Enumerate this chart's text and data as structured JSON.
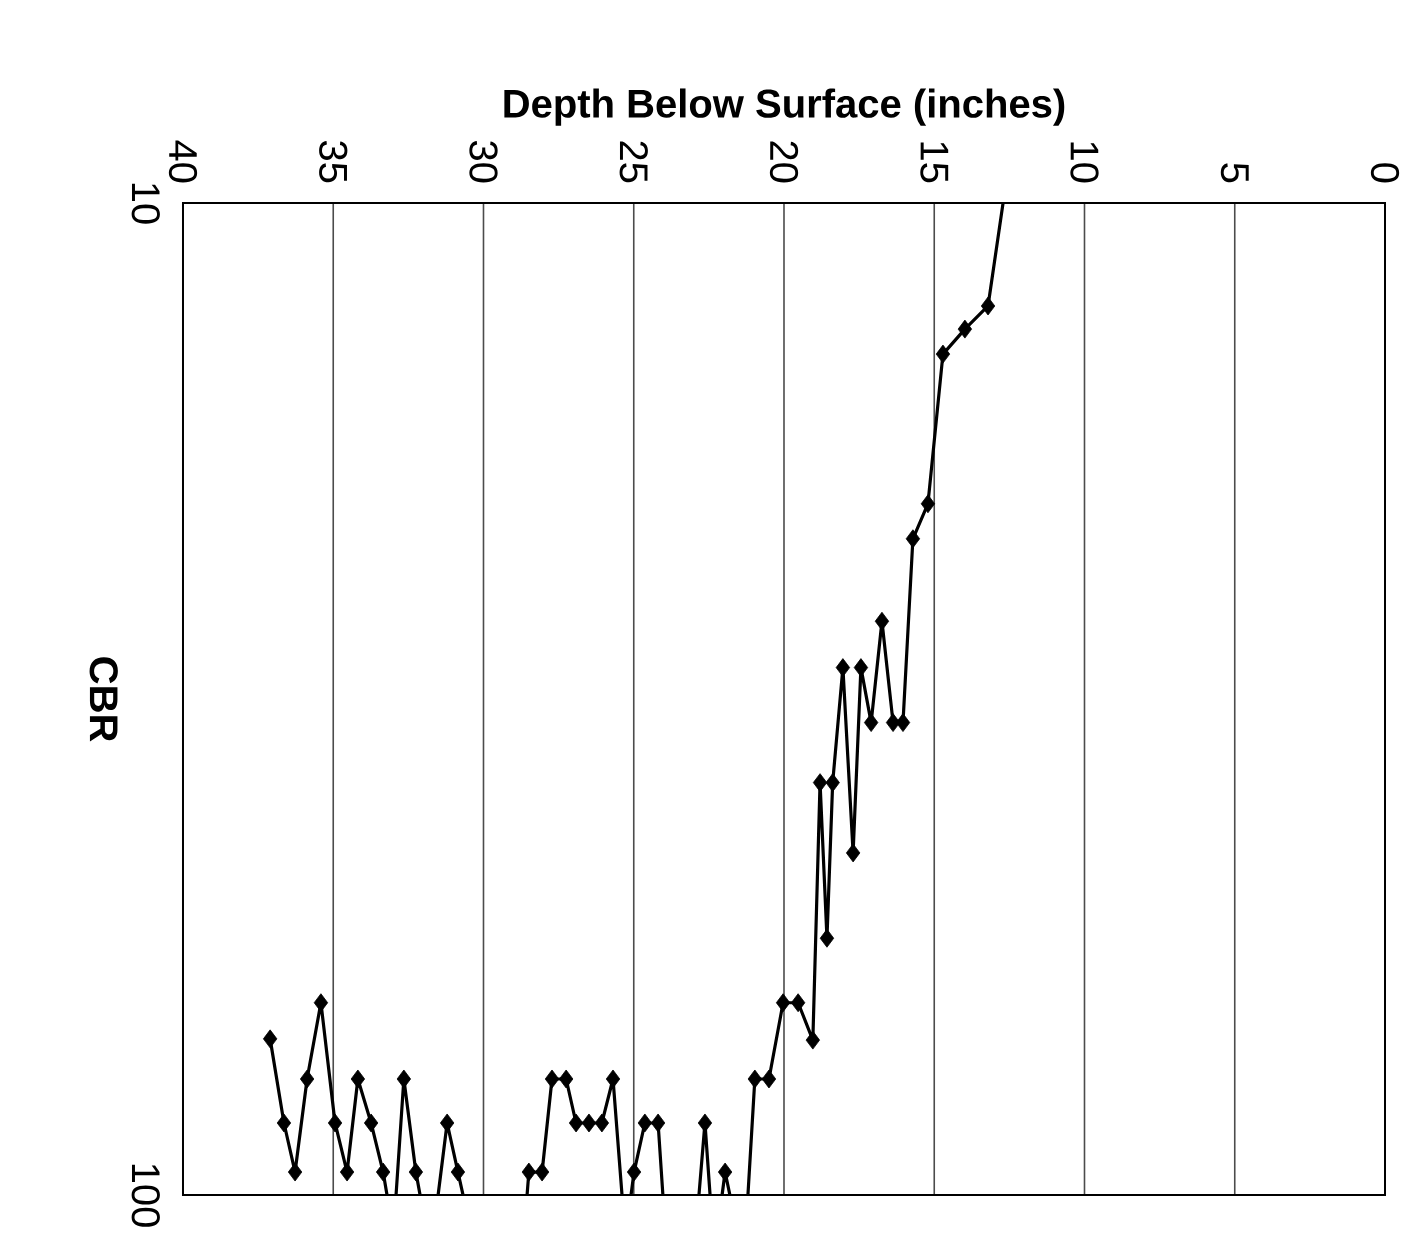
{
  "chart_data": {
    "type": "line",
    "xlabel": "Depth Below Surface (inches)",
    "ylabel": "CBR",
    "xlim": [
      40,
      0
    ],
    "xticks": [
      0,
      5,
      10,
      15,
      20,
      25,
      30,
      35,
      40
    ],
    "ylim": [
      100,
      10
    ],
    "yticks": [
      10,
      100
    ],
    "log": "y",
    "grid": "x",
    "series": [
      {
        "type": "line",
        "color": "#000000",
        "marker": "none",
        "line_style": "solid",
        "x": [
          12.71,
          13.21,
          13.98,
          14.71,
          15.21,
          15.71,
          16.04,
          16.37,
          16.74,
          17.1,
          17.44,
          17.7,
          18.04,
          18.38,
          18.57,
          18.8,
          19.04,
          19.53,
          20.03,
          20.5,
          20.97,
          21.2,
          21.5,
          21.8,
          21.96,
          22.06,
          22.26,
          22.46,
          22.63,
          22.83,
          23.43,
          24.03,
          24.19,
          24.63,
          24.99,
          25.09,
          25.24,
          25.39,
          25.69,
          26.06,
          26.49,
          26.92,
          27.25,
          27.72,
          28.05,
          28.49,
          28.55,
          29.6,
          30.68,
          30.85,
          31.21,
          31.51,
          31.81,
          32.11,
          32.25,
          32.65,
          32.91,
          33.06,
          33.21,
          33.34,
          33.74,
          34.18,
          34.54,
          34.94,
          35.41,
          35.87,
          36.27,
          36.64,
          37.1
        ],
        "values": [
          10,
          12.7,
          13.4,
          14.2,
          20.1,
          21.8,
          33.4,
          33.4,
          26.4,
          33.4,
          29.4,
          45.2,
          29.4,
          38.4,
          55.1,
          38.4,
          69.8,
          64.0,
          64.0,
          76.4,
          76.4,
          100,
          null,
          100,
          94.8,
          100,
          null,
          100,
          84.6,
          100,
          null,
          100,
          84.6,
          84.6,
          94.8,
          100,
          null,
          100,
          76.4,
          84.6,
          84.6,
          84.6,
          76.4,
          76.4,
          94.8,
          94.8,
          100,
          null,
          100,
          94.8,
          84.6,
          100,
          null,
          100,
          94.8,
          76.4,
          100,
          null,
          100,
          94.8,
          84.6,
          76.4,
          94.8,
          84.6,
          64.0,
          76.4,
          94.8,
          84.6,
          69.6
        ]
      },
      {
        "type": "scatter",
        "color": "#000000",
        "marker": "diamond",
        "x": [
          13.21,
          13.98,
          14.71,
          15.21,
          15.71,
          16.04,
          16.37,
          16.74,
          17.1,
          17.44,
          17.7,
          18.04,
          18.38,
          18.57,
          18.8,
          19.04,
          19.53,
          20.03,
          20.5,
          20.97,
          21.96,
          22.63,
          24.19,
          24.63,
          24.99,
          25.69,
          26.06,
          26.49,
          26.92,
          27.25,
          27.72,
          28.05,
          28.49,
          30.85,
          31.21,
          32.25,
          32.65,
          33.34,
          33.74,
          34.18,
          34.54,
          34.94,
          35.41,
          35.87,
          36.27,
          36.64,
          37.1
        ],
        "values": [
          12.7,
          13.4,
          14.2,
          20.1,
          21.8,
          33.4,
          33.4,
          26.4,
          33.4,
          29.4,
          45.2,
          29.4,
          38.4,
          55.1,
          38.4,
          69.8,
          64.0,
          64.0,
          76.4,
          76.4,
          94.8,
          84.6,
          84.6,
          84.6,
          94.8,
          76.4,
          84.6,
          84.6,
          84.6,
          76.4,
          76.4,
          94.8,
          94.8,
          94.8,
          84.6,
          94.8,
          76.4,
          94.8,
          84.6,
          76.4,
          94.8,
          84.6,
          64.0,
          76.4,
          94.8,
          84.6,
          69.6
        ]
      }
    ]
  }
}
